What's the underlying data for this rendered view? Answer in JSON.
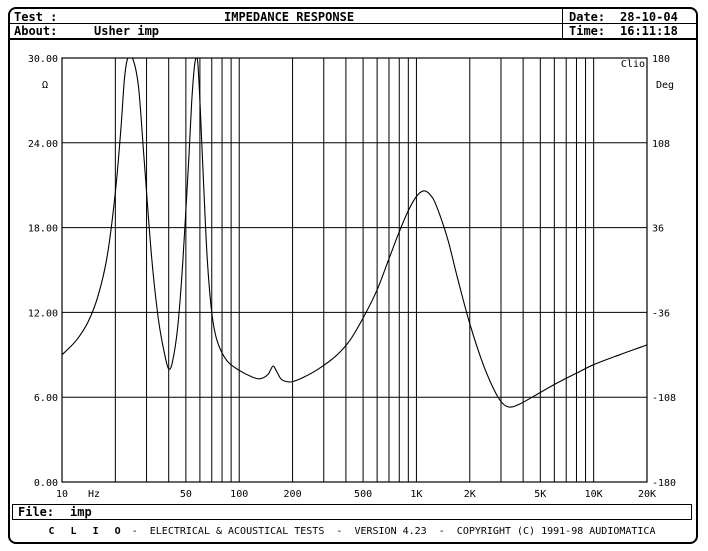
{
  "header": {
    "test_label": "Test :",
    "title": "IMPEDANCE RESPONSE",
    "about_label": "About:",
    "about_value": "Usher imp",
    "date_label": "Date:",
    "date_value": "28-10-04",
    "time_label": "Time:",
    "time_value": "16:11:18"
  },
  "file": {
    "label": "File:",
    "value": "imp"
  },
  "footer": {
    "brand": "C L I O",
    "text": " -  ELECTRICAL & ACOUSTICAL TESTS  -  VERSION 4.23  -  COPYRIGHT (C) 1991-98 AUDIOMATICA"
  },
  "chart_data": {
    "type": "line",
    "x_scale": "log",
    "xlim": [
      10,
      20000
    ],
    "ylim": [
      0,
      30
    ],
    "y2lim": [
      -180,
      180
    ],
    "y_unit": "Ω",
    "y2_unit": "Deg",
    "x_unit": "Hz",
    "corner_label": "Clio",
    "grid": true,
    "x_tick_labels": [
      {
        "value": 10,
        "label": "10"
      },
      {
        "value": 50,
        "label": "50"
      },
      {
        "value": 100,
        "label": "100"
      },
      {
        "value": 200,
        "label": "200"
      },
      {
        "value": 500,
        "label": "500"
      },
      {
        "value": 1000,
        "label": "1K"
      },
      {
        "value": 2000,
        "label": "2K"
      },
      {
        "value": 5000,
        "label": "5K"
      },
      {
        "value": 10000,
        "label": "10K"
      },
      {
        "value": 20000,
        "label": "20K"
      }
    ],
    "y_ticks": [
      {
        "value": 0,
        "label": "0.00"
      },
      {
        "value": 6,
        "label": "6.00"
      },
      {
        "value": 12,
        "label": "12.00"
      },
      {
        "value": 18,
        "label": "18.00"
      },
      {
        "value": 24,
        "label": "24.00"
      },
      {
        "value": 30,
        "label": "30.00"
      }
    ],
    "y2_ticks": [
      {
        "value": -180,
        "label": "-180"
      },
      {
        "value": -108,
        "label": "-108"
      },
      {
        "value": -36,
        "label": "-36"
      },
      {
        "value": 36,
        "label": "36"
      },
      {
        "value": 108,
        "label": "108"
      },
      {
        "value": 180,
        "label": "180"
      }
    ],
    "series": [
      {
        "x": [
          10,
          12,
          14,
          16,
          18,
          20,
          21.5,
          22.5,
          23.5,
          25,
          27,
          29,
          32,
          35,
          38,
          40,
          42,
          45,
          48,
          52,
          54,
          56,
          57.5,
          58.5,
          60,
          63,
          66,
          70,
          75,
          85,
          100,
          115,
          130,
          145,
          155,
          163,
          172,
          185,
          200,
          230,
          280,
          350,
          420,
          500,
          600,
          700,
          800,
          900,
          1000,
          1100,
          1200,
          1300,
          1500,
          1700,
          2000,
          2400,
          2800,
          3100,
          3400,
          3800,
          4500,
          6000,
          8000,
          10000,
          14000,
          20000
        ],
        "y": [
          9.0,
          10.0,
          11.3,
          13.2,
          16.0,
          20.5,
          25.0,
          28.5,
          30.0,
          30.0,
          28.0,
          23.0,
          16.0,
          11.5,
          9.0,
          8.0,
          8.5,
          11.0,
          15.5,
          23.0,
          27.0,
          29.5,
          30.0,
          29.5,
          27.0,
          21.0,
          15.8,
          12.0,
          10.0,
          8.6,
          7.9,
          7.5,
          7.3,
          7.6,
          8.2,
          7.8,
          7.3,
          7.1,
          7.1,
          7.4,
          8.0,
          8.9,
          10.0,
          11.6,
          13.6,
          15.8,
          17.7,
          19.2,
          20.2,
          20.6,
          20.3,
          19.5,
          17.2,
          14.5,
          11.2,
          8.2,
          6.3,
          5.5,
          5.3,
          5.5,
          6.0,
          6.9,
          7.7,
          8.3,
          9.0,
          9.7
        ]
      }
    ]
  }
}
